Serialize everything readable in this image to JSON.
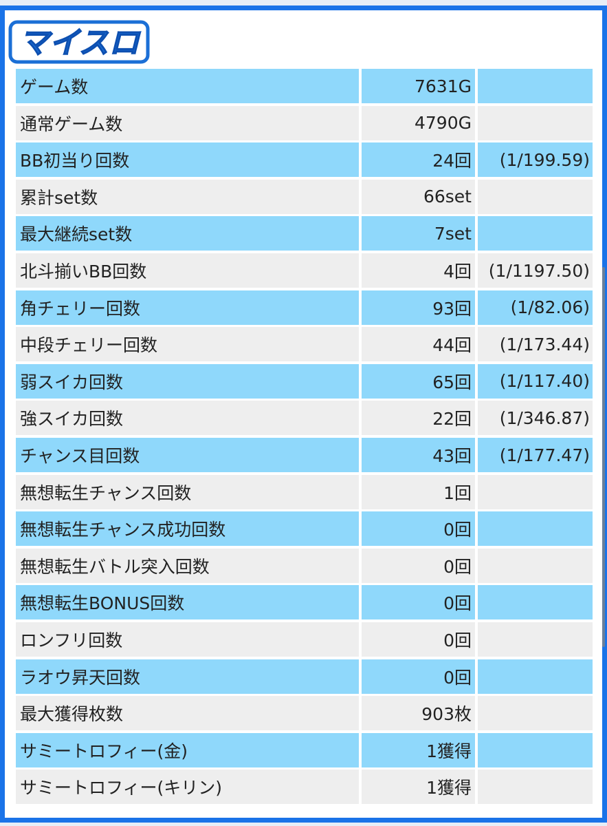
{
  "header": {
    "logo_text": "マイスロ"
  },
  "colors": {
    "frame_border": "#1a73e8",
    "row_blue": "#8fd8fb",
    "row_gray": "#eeeeee",
    "logo_blue": "#1b6fd6"
  },
  "rows": [
    {
      "label": "ゲーム数",
      "value": "7631G",
      "ratio": ""
    },
    {
      "label": "通常ゲーム数",
      "value": "4790G",
      "ratio": ""
    },
    {
      "label": "BB初当り回数",
      "value": "24回",
      "ratio": "(1/199.59)"
    },
    {
      "label": "累計set数",
      "value": "66set",
      "ratio": ""
    },
    {
      "label": "最大継続set数",
      "value": "7set",
      "ratio": ""
    },
    {
      "label": "北斗揃いBB回数",
      "value": "4回",
      "ratio": "(1/1197.50)"
    },
    {
      "label": "角チェリー回数",
      "value": "93回",
      "ratio": "(1/82.06)"
    },
    {
      "label": "中段チェリー回数",
      "value": "44回",
      "ratio": "(1/173.44)"
    },
    {
      "label": "弱スイカ回数",
      "value": "65回",
      "ratio": "(1/117.40)"
    },
    {
      "label": "強スイカ回数",
      "value": "22回",
      "ratio": "(1/346.87)"
    },
    {
      "label": "チャンス目回数",
      "value": "43回",
      "ratio": "(1/177.47)"
    },
    {
      "label": "無想転生チャンス回数",
      "value": "1回",
      "ratio": ""
    },
    {
      "label": "無想転生チャンス成功回数",
      "value": "0回",
      "ratio": ""
    },
    {
      "label": "無想転生バトル突入回数",
      "value": "0回",
      "ratio": ""
    },
    {
      "label": "無想転生BONUS回数",
      "value": "0回",
      "ratio": ""
    },
    {
      "label": "ロンフリ回数",
      "value": "0回",
      "ratio": ""
    },
    {
      "label": "ラオウ昇天回数",
      "value": "0回",
      "ratio": ""
    },
    {
      "label": "最大獲得枚数",
      "value": "903枚",
      "ratio": ""
    },
    {
      "label": "サミートロフィー(金)",
      "value": "1獲得",
      "ratio": ""
    },
    {
      "label": "サミートロフィー(キリン)",
      "value": "1獲得",
      "ratio": ""
    }
  ]
}
